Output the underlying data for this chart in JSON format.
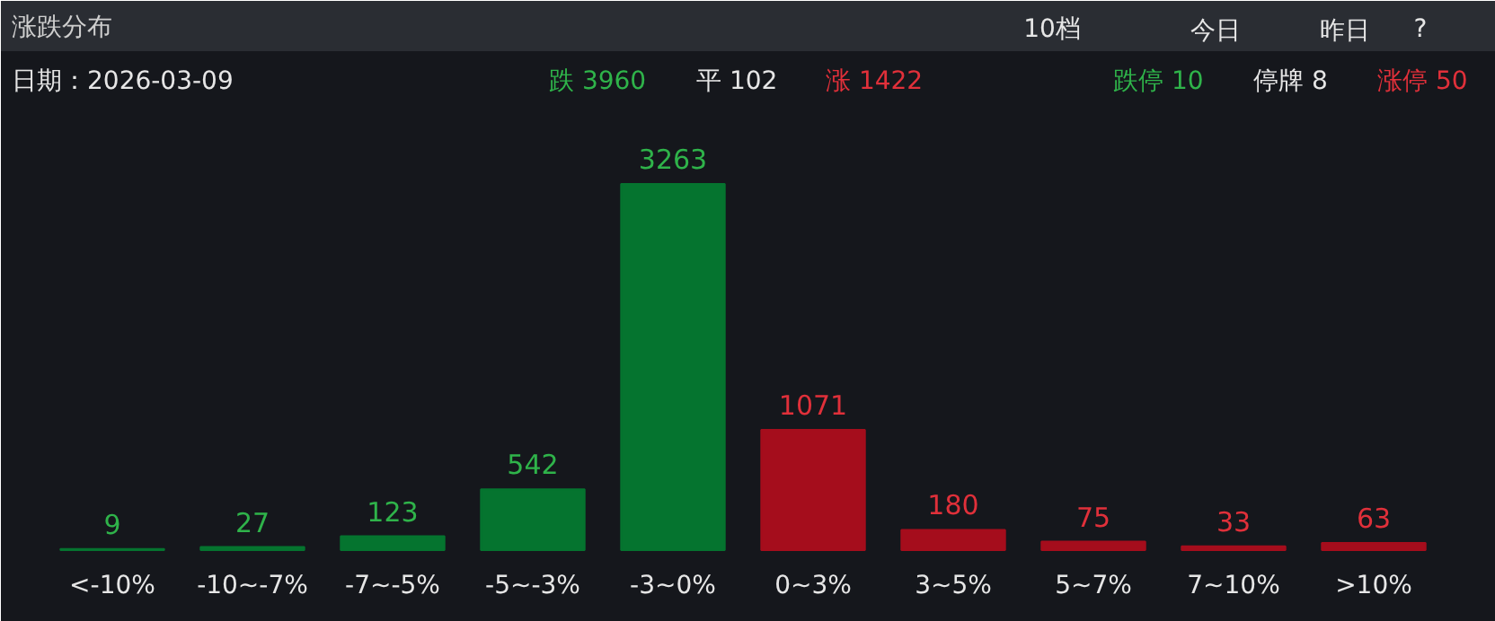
{
  "chart_data": {
    "type": "bar",
    "title": "涨跌分布",
    "categories": [
      "<-10%",
      "-10~-7%",
      "-7~-5%",
      "-5~-3%",
      "-3~0%",
      "0~3%",
      "3~5%",
      "5~7%",
      "7~10%",
      ">10%"
    ],
    "values": [
      9,
      27,
      123,
      542,
      3263,
      1071,
      180,
      75,
      33,
      63
    ],
    "colors": [
      "#05742f",
      "#05742f",
      "#05742f",
      "#05742f",
      "#05742f",
      "#a50d1c",
      "#a50d1c",
      "#a50d1c",
      "#a50d1c",
      "#a50d1c"
    ],
    "data_labels": true,
    "annotations": [
      "10档",
      "今日",
      "昨日",
      "?",
      "日期：2026-03-09",
      "跌 3960",
      "平 102",
      "涨 1422",
      "跌停 10",
      "停牌 8",
      "涨停 50"
    ]
  }
}
